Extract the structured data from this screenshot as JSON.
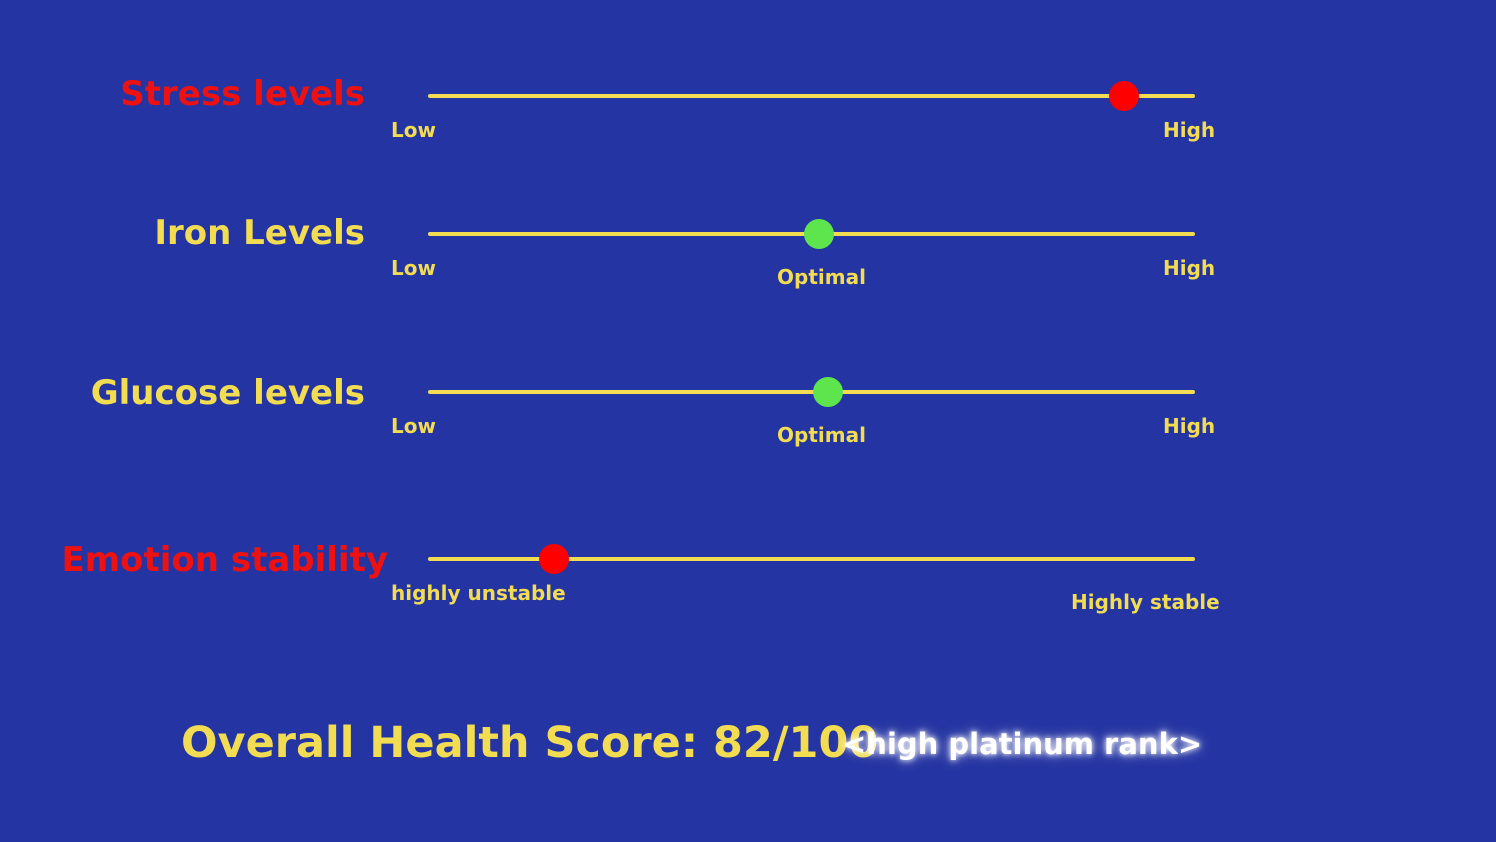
{
  "colors": {
    "background": "#2434a2",
    "track": "#f2dc52",
    "good": "#5ee54e",
    "bad": "#ff0000",
    "label_warning": "#ee1111",
    "label_normal": "#f2dc52"
  },
  "metrics": [
    {
      "label": "Stress levels",
      "status": "bad",
      "value": 0.908,
      "low_label": "Low",
      "high_label": "High",
      "mid_label": ""
    },
    {
      "label": "Iron Levels",
      "status": "good",
      "value": 0.51,
      "low_label": "Low",
      "high_label": "High",
      "mid_label": "Optimal"
    },
    {
      "label": "Glucose levels",
      "status": "good",
      "value": 0.521,
      "low_label": "Low",
      "high_label": "High",
      "mid_label": "Optimal"
    },
    {
      "label": "Emotion stability",
      "status": "bad",
      "value": 0.164,
      "low_label": "highly unstable",
      "high_label": "Highly stable",
      "mid_label": ""
    }
  ],
  "summary": {
    "score_text": "Overall Health Score: 82/100",
    "rank_text": "<high platinum rank>"
  }
}
